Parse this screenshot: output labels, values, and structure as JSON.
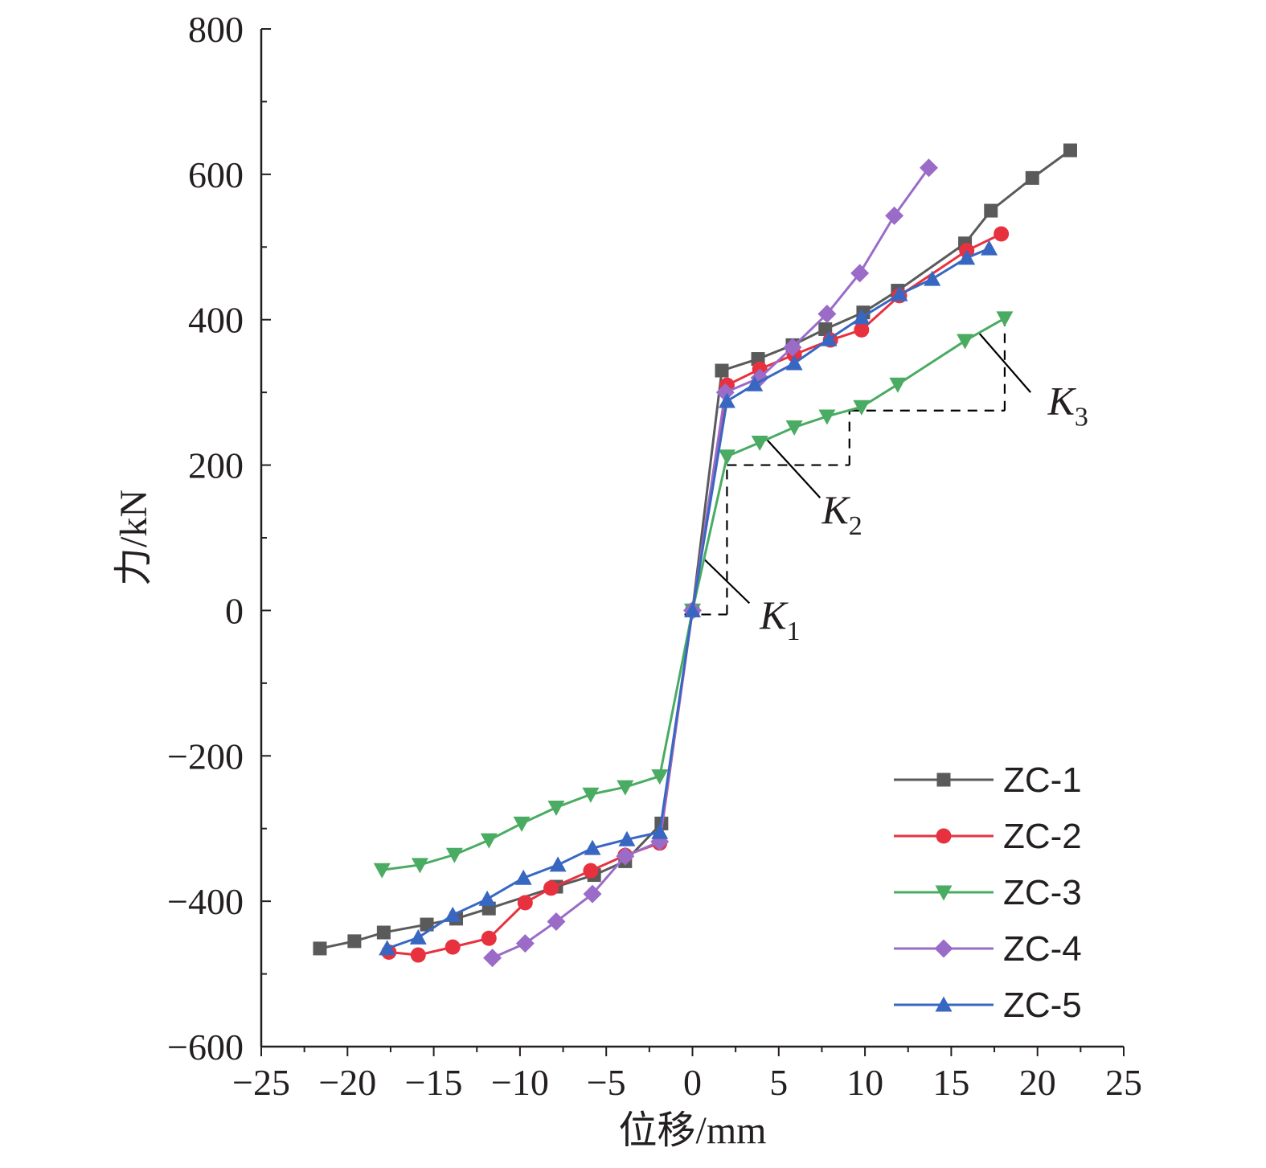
{
  "chart_data": {
    "type": "line",
    "title": "",
    "xlabel": "位移/mm",
    "ylabel": "力/kN",
    "xlim": [
      -25,
      25
    ],
    "ylim": [
      -600,
      800
    ],
    "xticks": [
      -25,
      -20,
      -15,
      -10,
      -5,
      0,
      5,
      10,
      15,
      20,
      25
    ],
    "xtick_labels": [
      "−25",
      "−20",
      "−15",
      "−10",
      "−5",
      "0",
      "5",
      "10",
      "15",
      "20",
      "25"
    ],
    "yticks": [
      -600,
      -400,
      -200,
      0,
      200,
      400,
      600,
      800
    ],
    "ytick_labels": [
      "−600",
      "−400",
      "−200",
      "0",
      "200",
      "400",
      "600",
      "800"
    ],
    "grid": false,
    "legend_position": "bottom-right",
    "series": [
      {
        "name": "ZC-1",
        "color": "#5a5a5a",
        "marker": "square",
        "x": [
          -21.6,
          -19.6,
          -17.9,
          -15.4,
          -13.7,
          -11.8,
          -7.9,
          -5.7,
          -3.9,
          -1.8,
          0,
          1.7,
          3.8,
          5.8,
          7.7,
          9.9,
          11.9,
          15.8,
          17.3,
          19.7,
          21.9
        ],
        "y": [
          -465,
          -455,
          -443,
          -432,
          -424,
          -410,
          -380,
          -364,
          -345,
          -293,
          0,
          330,
          346,
          365,
          387,
          410,
          440,
          505,
          550,
          595,
          633
        ]
      },
      {
        "name": "ZC-2",
        "color": "#e8313f",
        "marker": "circle",
        "x": [
          -17.6,
          -15.9,
          -13.9,
          -11.8,
          -9.7,
          -8.2,
          -5.9,
          -3.9,
          -1.9,
          0,
          2.0,
          3.9,
          5.9,
          8.0,
          9.8,
          12.0,
          15.9,
          17.9
        ],
        "y": [
          -470,
          -474,
          -463,
          -451,
          -402,
          -382,
          -358,
          -337,
          -320,
          0,
          310,
          332,
          352,
          372,
          386,
          433,
          495,
          518
        ]
      },
      {
        "name": "ZC-3",
        "color": "#4aab62",
        "marker": "triangle-down",
        "x": [
          -18.0,
          -15.8,
          -13.8,
          -11.8,
          -9.9,
          -7.9,
          -5.9,
          -3.9,
          -1.9,
          0,
          2.0,
          3.9,
          5.9,
          7.8,
          9.8,
          11.9,
          15.8,
          18.1
        ],
        "y": [
          -357,
          -350,
          -336,
          -316,
          -293,
          -271,
          -253,
          -243,
          -228,
          0,
          212,
          231,
          252,
          267,
          280,
          311,
          371,
          402
        ]
      },
      {
        "name": "ZC-4",
        "color": "#9b6bc8",
        "marker": "diamond",
        "x": [
          -11.6,
          -9.7,
          -7.9,
          -5.8,
          -3.9,
          -1.9,
          0,
          1.9,
          3.9,
          5.8,
          7.8,
          9.7,
          11.7,
          13.7
        ],
        "y": [
          -478,
          -458,
          -428,
          -390,
          -338,
          -318,
          0,
          300,
          320,
          362,
          408,
          464,
          543,
          609
        ]
      },
      {
        "name": "ZC-5",
        "color": "#3867c2",
        "marker": "triangle-up",
        "x": [
          -17.7,
          -15.9,
          -13.9,
          -11.9,
          -9.8,
          -7.8,
          -5.8,
          -3.8,
          -1.9,
          0,
          2.0,
          3.6,
          5.9,
          7.9,
          9.8,
          12.0,
          13.9,
          15.9,
          17.2
        ],
        "y": [
          -465,
          -450,
          -419,
          -397,
          -368,
          -350,
          -327,
          -315,
          -305,
          0,
          288,
          311,
          340,
          373,
          403,
          435,
          456,
          485,
          498
        ]
      }
    ],
    "annotations": [
      {
        "label": "K",
        "subscript": "1",
        "guide_x": [
          0,
          2.0
        ],
        "guide_y": [
          0,
          200
        ]
      },
      {
        "label": "K",
        "subscript": "2",
        "guide_x": [
          2.0,
          9.1
        ],
        "guide_y": [
          200,
          275
        ]
      },
      {
        "label": "K",
        "subscript": "3",
        "guide_x": [
          9.1,
          18.1
        ],
        "guide_y": [
          275,
          402
        ]
      }
    ]
  }
}
